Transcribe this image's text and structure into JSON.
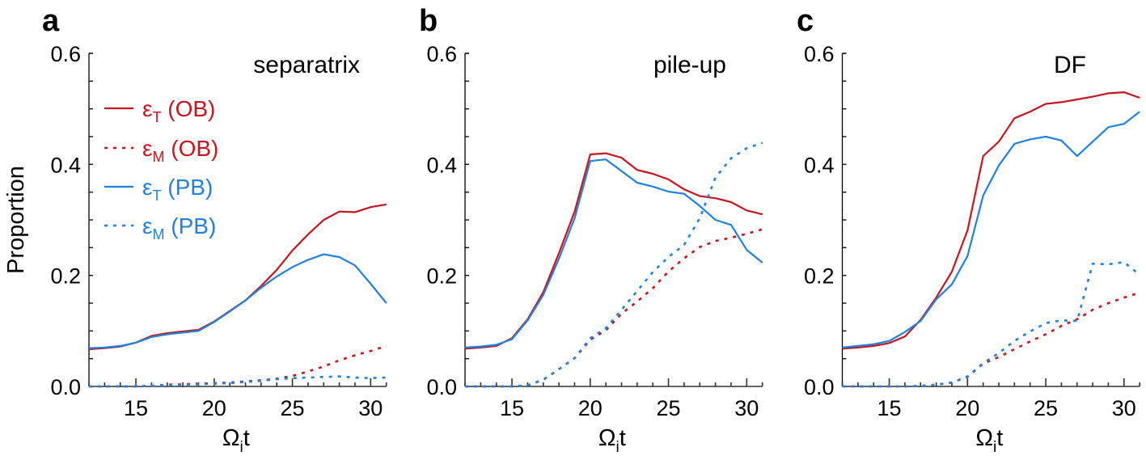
{
  "figure": {
    "ylabel": "Proportion",
    "xlabel_main": "Ω",
    "xlabel_sub": "i",
    "xlabel_tail": "t"
  },
  "legend": {
    "placement": "upper-left of panel a",
    "entries": [
      {
        "symbol": "ε",
        "sub": "T",
        "label": "(OB)",
        "color": "#c8161d",
        "style": "solid"
      },
      {
        "symbol": "ε",
        "sub": "M",
        "label": "(OB)",
        "color": "#c8161d",
        "style": "dotted"
      },
      {
        "symbol": "ε",
        "sub": "T",
        "label": "(PB)",
        "color": "#1f82e0",
        "style": "solid"
      },
      {
        "symbol": "ε",
        "sub": "M",
        "label": "(PB)",
        "color": "#1f82e0",
        "style": "dotted"
      }
    ]
  },
  "chart_data": [
    {
      "type": "line",
      "panel": "a",
      "title": "separatrix",
      "xlabel": "Ωit",
      "ylabel": "Proportion",
      "xlim": [
        12,
        31
      ],
      "ylim": [
        0,
        0.6
      ],
      "xticks": [
        15,
        20,
        25,
        30
      ],
      "yticks": [
        "0.0",
        "0.2",
        "0.4",
        "0.6"
      ],
      "grid": false,
      "x": [
        12,
        13,
        14,
        15,
        16,
        17,
        18,
        19,
        20,
        21,
        22,
        23,
        24,
        25,
        26,
        27,
        28,
        29,
        30,
        31
      ],
      "series": [
        {
          "name": "εT (OB)",
          "color": "#c8161d",
          "style": "solid",
          "values": [
            0.067,
            0.069,
            0.072,
            0.079,
            0.091,
            0.096,
            0.099,
            0.102,
            0.117,
            0.136,
            0.155,
            0.181,
            0.21,
            0.245,
            0.274,
            0.3,
            0.315,
            0.314,
            0.323,
            0.328
          ]
        },
        {
          "name": "εM (OB)",
          "color": "#c8161d",
          "style": "dotted",
          "values": [
            0.0,
            0.0,
            0.0,
            0.0,
            0.001,
            0.003,
            0.004,
            0.005,
            0.006,
            0.007,
            0.009,
            0.011,
            0.014,
            0.019,
            0.027,
            0.036,
            0.047,
            0.056,
            0.064,
            0.073
          ]
        },
        {
          "name": "εT (PB)",
          "color": "#1f82e0",
          "style": "solid",
          "values": [
            0.069,
            0.07,
            0.073,
            0.079,
            0.089,
            0.094,
            0.097,
            0.1,
            0.116,
            0.135,
            0.155,
            0.178,
            0.198,
            0.215,
            0.228,
            0.238,
            0.233,
            0.218,
            0.185,
            0.15
          ]
        },
        {
          "name": "εM (PB)",
          "color": "#1f82e0",
          "style": "dotted",
          "values": [
            0.0,
            0.0,
            0.0,
            0.0,
            0.001,
            0.002,
            0.003,
            0.004,
            0.005,
            0.006,
            0.008,
            0.01,
            0.013,
            0.015,
            0.016,
            0.017,
            0.018,
            0.016,
            0.015,
            0.016
          ]
        }
      ]
    },
    {
      "type": "line",
      "panel": "b",
      "title": "pile-up",
      "xlabel": "Ωit",
      "ylabel": "",
      "xlim": [
        12,
        31
      ],
      "ylim": [
        0,
        0.6
      ],
      "xticks": [
        15,
        20,
        25,
        30
      ],
      "yticks": [
        "0.0",
        "0.2",
        "0.4",
        "0.6"
      ],
      "grid": false,
      "x": [
        12,
        13,
        14,
        15,
        16,
        17,
        18,
        19,
        20,
        21,
        22,
        23,
        24,
        25,
        26,
        27,
        28,
        29,
        30,
        31
      ],
      "series": [
        {
          "name": "εT (OB)",
          "color": "#c8161d",
          "style": "solid",
          "values": [
            0.068,
            0.07,
            0.073,
            0.087,
            0.121,
            0.17,
            0.24,
            0.315,
            0.418,
            0.42,
            0.412,
            0.39,
            0.383,
            0.373,
            0.355,
            0.343,
            0.339,
            0.332,
            0.317,
            0.31
          ]
        },
        {
          "name": "εM (OB)",
          "color": "#c8161d",
          "style": "dotted",
          "values": [
            0.0,
            0.0,
            0.0,
            0.0,
            0.002,
            0.012,
            0.031,
            0.051,
            0.084,
            0.101,
            0.131,
            0.153,
            0.177,
            0.207,
            0.231,
            0.251,
            0.262,
            0.268,
            0.275,
            0.283
          ]
        },
        {
          "name": "εT (PB)",
          "color": "#1f82e0",
          "style": "solid",
          "values": [
            0.07,
            0.072,
            0.075,
            0.085,
            0.119,
            0.165,
            0.23,
            0.303,
            0.406,
            0.409,
            0.388,
            0.367,
            0.36,
            0.351,
            0.347,
            0.325,
            0.3,
            0.291,
            0.246,
            0.223
          ]
        },
        {
          "name": "εM (PB)",
          "color": "#1f82e0",
          "style": "dotted",
          "values": [
            0.0,
            0.0,
            0.0,
            0.0,
            0.002,
            0.012,
            0.031,
            0.051,
            0.087,
            0.105,
            0.138,
            0.172,
            0.206,
            0.233,
            0.255,
            0.303,
            0.376,
            0.411,
            0.429,
            0.439
          ]
        }
      ]
    },
    {
      "type": "line",
      "panel": "c",
      "title": "DF",
      "xlabel": "Ωit",
      "ylabel": "",
      "xlim": [
        12,
        31
      ],
      "ylim": [
        0,
        0.6
      ],
      "xticks": [
        15,
        20,
        25,
        30
      ],
      "yticks": [
        "0.0",
        "0.2",
        "0.4",
        "0.6"
      ],
      "grid": false,
      "x": [
        12,
        13,
        14,
        15,
        16,
        17,
        18,
        19,
        20,
        21,
        22,
        23,
        24,
        25,
        26,
        27,
        28,
        29,
        30,
        31
      ],
      "series": [
        {
          "name": "εT (OB)",
          "color": "#c8161d",
          "style": "solid",
          "values": [
            0.068,
            0.07,
            0.073,
            0.078,
            0.09,
            0.12,
            0.16,
            0.207,
            0.281,
            0.415,
            0.441,
            0.483,
            0.495,
            0.509,
            0.512,
            0.517,
            0.522,
            0.528,
            0.53,
            0.52
          ]
        },
        {
          "name": "εM (OB)",
          "color": "#c8161d",
          "style": "dotted",
          "values": [
            0.0,
            0.0,
            0.0,
            0.0,
            0.0,
            0.001,
            0.003,
            0.007,
            0.017,
            0.041,
            0.053,
            0.067,
            0.081,
            0.094,
            0.109,
            0.121,
            0.138,
            0.15,
            0.16,
            0.169
          ]
        },
        {
          "name": "εT (PB)",
          "color": "#1f82e0",
          "style": "solid",
          "values": [
            0.07,
            0.073,
            0.076,
            0.082,
            0.098,
            0.118,
            0.157,
            0.184,
            0.235,
            0.344,
            0.398,
            0.437,
            0.445,
            0.45,
            0.443,
            0.415,
            0.441,
            0.467,
            0.473,
            0.495
          ]
        },
        {
          "name": "εM (PB)",
          "color": "#1f82e0",
          "style": "dotted",
          "values": [
            0.0,
            0.0,
            0.0,
            0.0,
            0.0,
            0.001,
            0.003,
            0.007,
            0.018,
            0.042,
            0.06,
            0.082,
            0.099,
            0.114,
            0.119,
            0.118,
            0.221,
            0.22,
            0.224,
            0.201
          ]
        }
      ]
    }
  ]
}
